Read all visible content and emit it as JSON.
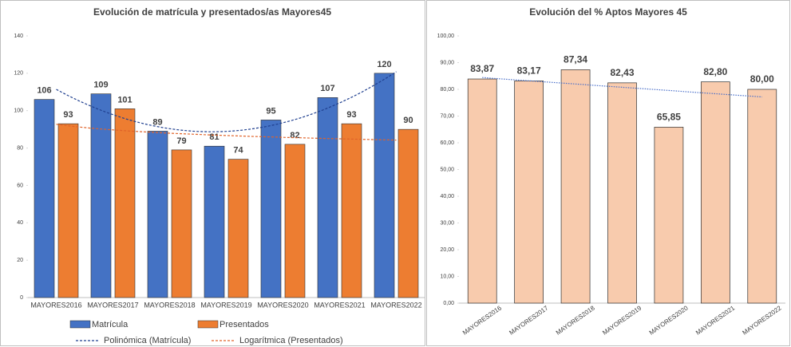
{
  "chart_data": [
    {
      "type": "bar",
      "title": "Evolución de matrícula y presentados/as Mayores45",
      "categories": [
        "MAYORES2016",
        "MAYORES2017",
        "MAYORES2018",
        "MAYORES2019",
        "MAYORES2020",
        "MAYORES2021",
        "MAYORES2022"
      ],
      "series": [
        {
          "name": "Matrícula",
          "color": "#4472c4",
          "values": [
            106,
            109,
            89,
            81,
            95,
            107,
            120
          ]
        },
        {
          "name": "Presentados",
          "color": "#ed7d31",
          "values": [
            93,
            101,
            79,
            74,
            82,
            93,
            90
          ]
        }
      ],
      "trendlines": [
        {
          "name": "Polinómica (Matrícula)",
          "series": 0,
          "kind": "polynomial",
          "color": "#1f3f8f"
        },
        {
          "name": "Logarítmica (Presentados)",
          "series": 1,
          "kind": "logarithmic",
          "color": "#e0632a"
        }
      ],
      "ylim": [
        0,
        140
      ],
      "yticks": [
        0,
        20,
        40,
        60,
        80,
        100,
        120,
        140
      ],
      "legend": "bottom"
    },
    {
      "type": "bar",
      "title": "Evolución del % Aptos Mayores 45",
      "categories": [
        "MAYORES2016",
        "MAYORES2017",
        "MAYORES2018",
        "MAYORES2019",
        "MAYORES2020",
        "MAYORES2021",
        "MAYORES2022"
      ],
      "values": [
        83.87,
        83.17,
        87.34,
        82.43,
        65.85,
        82.8,
        80.0
      ],
      "value_labels": [
        "83,87",
        "83,17",
        "87,34",
        "82,43",
        "65,85",
        "82,80",
        "80,00"
      ],
      "color": "#f8cbad",
      "trendlines": [
        {
          "kind": "linear",
          "color": "#4a6fc9"
        }
      ],
      "ylim": [
        0,
        100
      ],
      "yticks": [
        {
          "value": 0,
          "label": "0,00"
        },
        {
          "value": 10,
          "label": "10,00"
        },
        {
          "value": 20,
          "label": "20,00"
        },
        {
          "value": 30,
          "label": "30,00"
        },
        {
          "value": 40,
          "label": "40,00"
        },
        {
          "value": 50,
          "label": "50,00"
        },
        {
          "value": 60,
          "label": "60,00"
        },
        {
          "value": 70,
          "label": "70,00"
        },
        {
          "value": 80,
          "label": "80,00"
        },
        {
          "value": 90,
          "label": "90,00"
        },
        {
          "value": 100,
          "label": "100,00"
        }
      ]
    }
  ]
}
